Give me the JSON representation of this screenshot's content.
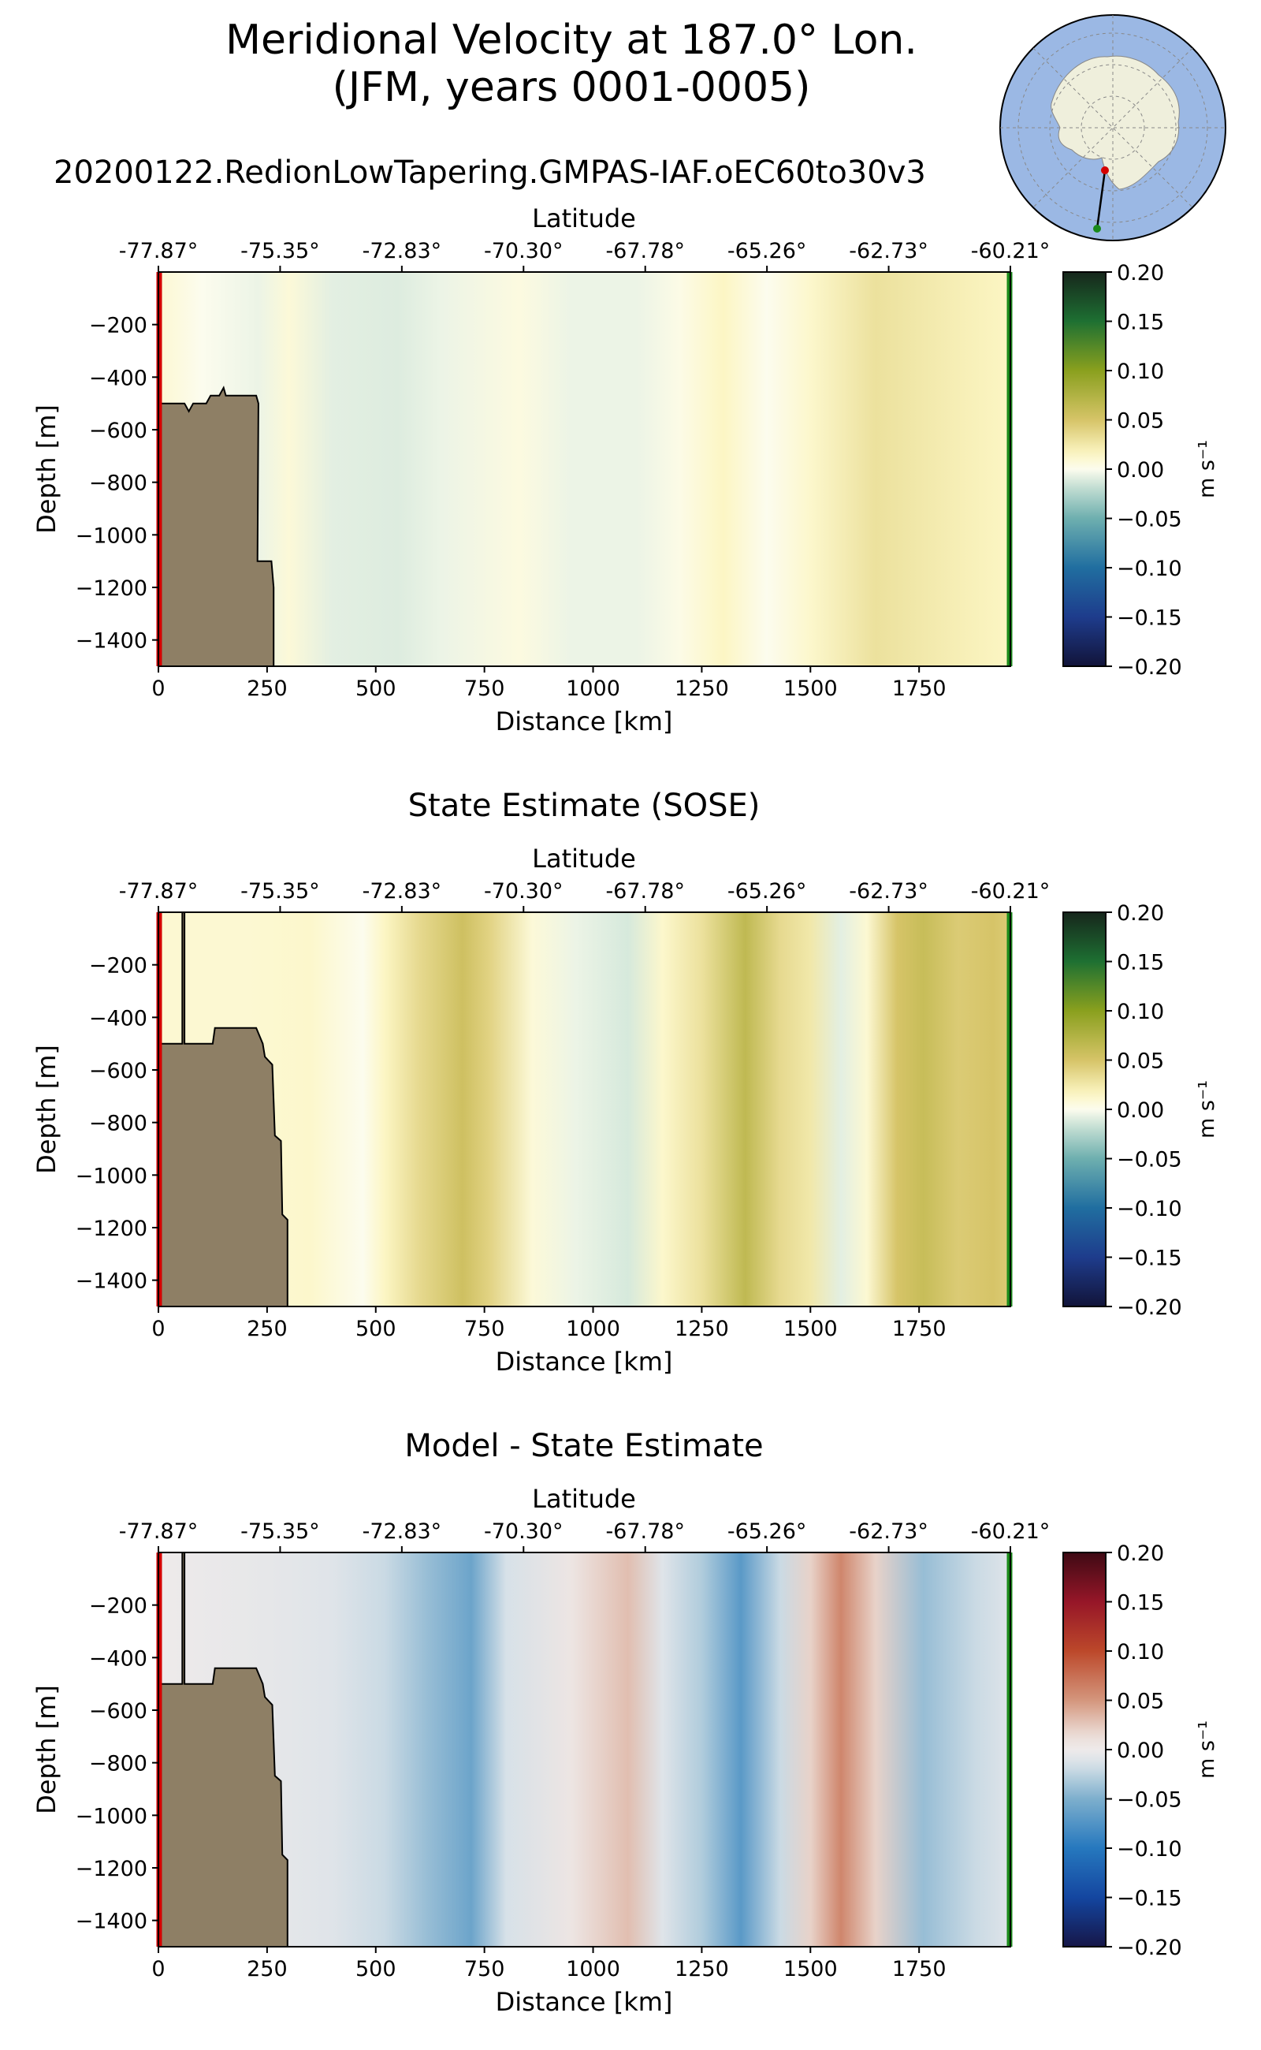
{
  "figure": {
    "title_line1": "Meridional Velocity at 187.0° Lon.",
    "title_line2": "(JFM, years 0001-0005)",
    "run_name": "20200122.RedionLowTapering.GMPAS-IAF.oEC60to30v3"
  },
  "colors": {
    "bathymetry_fill": "#8e7f65",
    "section_start_marker": "#d40000",
    "section_end_marker": "#1a8a1a",
    "inset_ocean": "#9bb8e4",
    "inset_land": "#efefdc"
  },
  "chart_data": [
    {
      "type": "heatmap",
      "title": "",
      "xlabel": "Distance [km]",
      "ylabel": "Depth [m]",
      "top_xlabel": "Latitude",
      "xlim": [
        0,
        1960
      ],
      "ylim": [
        -1500,
        0
      ],
      "x_ticks": [
        "0",
        "250",
        "500",
        "750",
        "1000",
        "1250",
        "1500",
        "1750"
      ],
      "y_ticks": [
        "−200",
        "−400",
        "−600",
        "−800",
        "−1000",
        "−1200",
        "−1400"
      ],
      "lat_ticks": [
        "-77.87°",
        "-75.35°",
        "-72.83°",
        "-70.30°",
        "-67.78°",
        "-65.26°",
        "-62.73°",
        "-60.21°"
      ],
      "colorbar": {
        "label": "m s⁻¹",
        "ticks": [
          "0.20",
          "0.15",
          "0.10",
          "0.05",
          "0.00",
          "−0.05",
          "−0.10",
          "−0.15",
          "−0.20"
        ],
        "range": [
          -0.2,
          0.2
        ],
        "colormap": "delta"
      },
      "field": [
        {
          "x": 0,
          "v": 0.01
        },
        {
          "x": 100,
          "v": 0.0
        },
        {
          "x": 230,
          "v": -0.005
        },
        {
          "x": 300,
          "v": 0.008
        },
        {
          "x": 400,
          "v": -0.008
        },
        {
          "x": 550,
          "v": -0.01
        },
        {
          "x": 650,
          "v": -0.005
        },
        {
          "x": 830,
          "v": 0.005
        },
        {
          "x": 950,
          "v": -0.005
        },
        {
          "x": 1100,
          "v": -0.005
        },
        {
          "x": 1200,
          "v": 0.003
        },
        {
          "x": 1300,
          "v": 0.015
        },
        {
          "x": 1400,
          "v": 0.0
        },
        {
          "x": 1500,
          "v": 0.012
        },
        {
          "x": 1650,
          "v": 0.03
        },
        {
          "x": 1750,
          "v": 0.025
        },
        {
          "x": 1850,
          "v": 0.02
        },
        {
          "x": 1960,
          "v": 0.015
        }
      ],
      "bathymetry": [
        [
          0,
          -500
        ],
        [
          60,
          -500
        ],
        [
          70,
          -530
        ],
        [
          80,
          -500
        ],
        [
          110,
          -500
        ],
        [
          120,
          -470
        ],
        [
          140,
          -470
        ],
        [
          150,
          -440
        ],
        [
          155,
          -470
        ],
        [
          225,
          -470
        ],
        [
          230,
          -500
        ],
        [
          228,
          -1100
        ],
        [
          260,
          -1100
        ],
        [
          265,
          -1200
        ],
        [
          265,
          -1500
        ]
      ]
    },
    {
      "type": "heatmap",
      "title": "State Estimate (SOSE)",
      "xlabel": "Distance [km]",
      "ylabel": "Depth [m]",
      "top_xlabel": "Latitude",
      "xlim": [
        0,
        1960
      ],
      "ylim": [
        -1500,
        0
      ],
      "x_ticks": [
        "0",
        "250",
        "500",
        "750",
        "1000",
        "1250",
        "1500",
        "1750"
      ],
      "y_ticks": [
        "−200",
        "−400",
        "−600",
        "−800",
        "−1000",
        "−1200",
        "−1400"
      ],
      "lat_ticks": [
        "-77.87°",
        "-75.35°",
        "-72.83°",
        "-70.30°",
        "-67.78°",
        "-65.26°",
        "-62.73°",
        "-60.21°"
      ],
      "colorbar": {
        "label": "m s⁻¹",
        "ticks": [
          "0.20",
          "0.15",
          "0.10",
          "0.05",
          "0.00",
          "−0.05",
          "−0.10",
          "−0.15",
          "−0.20"
        ],
        "range": [
          -0.2,
          0.2
        ],
        "colormap": "delta"
      },
      "field": [
        {
          "x": 0,
          "v": 0.01
        },
        {
          "x": 200,
          "v": 0.01
        },
        {
          "x": 350,
          "v": 0.012
        },
        {
          "x": 470,
          "v": 0.0
        },
        {
          "x": 520,
          "v": 0.015
        },
        {
          "x": 600,
          "v": 0.035
        },
        {
          "x": 700,
          "v": 0.055
        },
        {
          "x": 760,
          "v": 0.04
        },
        {
          "x": 860,
          "v": 0.008
        },
        {
          "x": 960,
          "v": -0.005
        },
        {
          "x": 1080,
          "v": -0.012
        },
        {
          "x": 1160,
          "v": 0.012
        },
        {
          "x": 1250,
          "v": 0.03
        },
        {
          "x": 1350,
          "v": 0.065
        },
        {
          "x": 1430,
          "v": 0.035
        },
        {
          "x": 1500,
          "v": 0.025
        },
        {
          "x": 1570,
          "v": -0.008
        },
        {
          "x": 1630,
          "v": 0.01
        },
        {
          "x": 1700,
          "v": 0.05
        },
        {
          "x": 1760,
          "v": 0.06
        },
        {
          "x": 1840,
          "v": 0.045
        },
        {
          "x": 1920,
          "v": 0.05
        },
        {
          "x": 1960,
          "v": 0.045
        }
      ],
      "bathymetry": [
        [
          0,
          -500
        ],
        [
          55,
          -500
        ],
        [
          55,
          0
        ],
        [
          60,
          0
        ],
        [
          60,
          -500
        ],
        [
          125,
          -500
        ],
        [
          130,
          -440
        ],
        [
          225,
          -440
        ],
        [
          240,
          -500
        ],
        [
          245,
          -550
        ],
        [
          262,
          -580
        ],
        [
          268,
          -850
        ],
        [
          282,
          -870
        ],
        [
          285,
          -1150
        ],
        [
          297,
          -1170
        ],
        [
          297,
          -1500
        ]
      ]
    },
    {
      "type": "heatmap",
      "title": "Model - State Estimate",
      "xlabel": "Distance [km]",
      "ylabel": "Depth [m]",
      "top_xlabel": "Latitude",
      "xlim": [
        0,
        1960
      ],
      "ylim": [
        -1500,
        0
      ],
      "x_ticks": [
        "0",
        "250",
        "500",
        "750",
        "1000",
        "1250",
        "1500",
        "1750"
      ],
      "y_ticks": [
        "−200",
        "−400",
        "−600",
        "−800",
        "−1000",
        "−1200",
        "−1400"
      ],
      "lat_ticks": [
        "-77.87°",
        "-75.35°",
        "-72.83°",
        "-70.30°",
        "-67.78°",
        "-65.26°",
        "-62.73°",
        "-60.21°"
      ],
      "colorbar": {
        "label": "m s⁻¹",
        "ticks": [
          "0.20",
          "0.15",
          "0.10",
          "0.05",
          "0.00",
          "−0.05",
          "−0.10",
          "−0.15",
          "−0.20"
        ],
        "range": [
          -0.2,
          0.2
        ],
        "colormap": "balance"
      },
      "field": [
        {
          "x": 0,
          "v": 0.0
        },
        {
          "x": 250,
          "v": -0.005
        },
        {
          "x": 400,
          "v": -0.01
        },
        {
          "x": 520,
          "v": -0.02
        },
        {
          "x": 620,
          "v": -0.04
        },
        {
          "x": 720,
          "v": -0.06
        },
        {
          "x": 800,
          "v": -0.015
        },
        {
          "x": 950,
          "v": 0.005
        },
        {
          "x": 1080,
          "v": 0.03
        },
        {
          "x": 1160,
          "v": -0.01
        },
        {
          "x": 1250,
          "v": -0.03
        },
        {
          "x": 1340,
          "v": -0.07
        },
        {
          "x": 1430,
          "v": -0.02
        },
        {
          "x": 1500,
          "v": 0.02
        },
        {
          "x": 1570,
          "v": 0.06
        },
        {
          "x": 1650,
          "v": 0.02
        },
        {
          "x": 1760,
          "v": -0.04
        },
        {
          "x": 1880,
          "v": -0.02
        },
        {
          "x": 1960,
          "v": -0.01
        }
      ],
      "bathymetry": [
        [
          0,
          -500
        ],
        [
          55,
          -500
        ],
        [
          55,
          0
        ],
        [
          60,
          0
        ],
        [
          60,
          -500
        ],
        [
          125,
          -500
        ],
        [
          130,
          -440
        ],
        [
          225,
          -440
        ],
        [
          240,
          -500
        ],
        [
          245,
          -550
        ],
        [
          262,
          -580
        ],
        [
          268,
          -850
        ],
        [
          282,
          -870
        ],
        [
          285,
          -1150
        ],
        [
          297,
          -1170
        ],
        [
          297,
          -1500
        ]
      ]
    }
  ],
  "inset_map": {
    "description_visible": false
  }
}
